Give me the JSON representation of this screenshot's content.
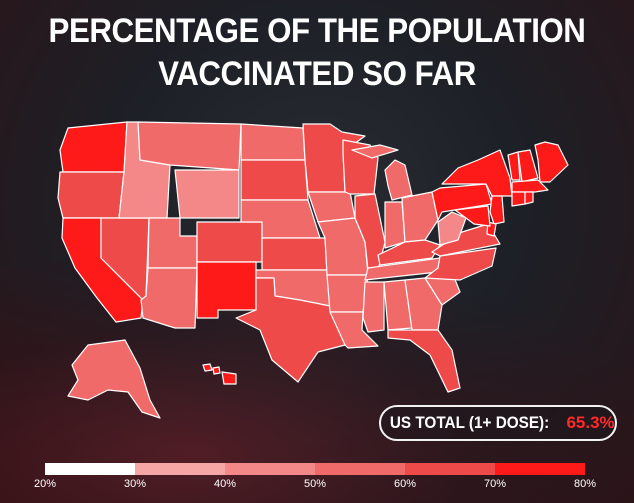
{
  "title": {
    "line1": "PERCENTAGE OF THE POPULATION",
    "line2": "VACCINATED SO FAR"
  },
  "total": {
    "label": "US TOTAL (1+ DOSE):",
    "value": "65.3%"
  },
  "legend": {
    "ticks": [
      "20%",
      "30%",
      "40%",
      "50%",
      "60%",
      "70%",
      "80%"
    ],
    "colors": [
      "#ffffff",
      "#f7a6a6",
      "#f48787",
      "#f16a6a",
      "#ee4a4a",
      "#ff1a1a"
    ]
  },
  "colors": {
    "background": "#1d2027",
    "state_border": "#ffffff",
    "accent": "#ff2a2a"
  },
  "map": {
    "region": "United States",
    "state_bins": {
      "WA": 5,
      "OR": 4,
      "CA": 5,
      "NV": 4,
      "ID": 2,
      "MT": 3,
      "WY": 2,
      "UT": 3,
      "AZ": 3,
      "CO": 4,
      "NM": 5,
      "ND": 3,
      "SD": 4,
      "NE": 3,
      "KS": 4,
      "OK": 3,
      "TX": 4,
      "MN": 4,
      "IA": 3,
      "MO": 3,
      "AR": 3,
      "LA": 3,
      "WI": 4,
      "IL": 4,
      "MI": 3,
      "IN": 3,
      "OH": 3,
      "KY": 4,
      "TN": 3,
      "MS": 3,
      "AL": 3,
      "GA": 3,
      "FL": 4,
      "SC": 3,
      "NC": 4,
      "VA": 4,
      "WV": 2,
      "PA": 5,
      "NY": 5,
      "ME": 5,
      "VT": 5,
      "NH": 5,
      "MA": 5,
      "CT": 5,
      "RI": 5,
      "NJ": 5,
      "DE": 5,
      "MD": 5,
      "AK": 3,
      "HI": 5
    }
  }
}
